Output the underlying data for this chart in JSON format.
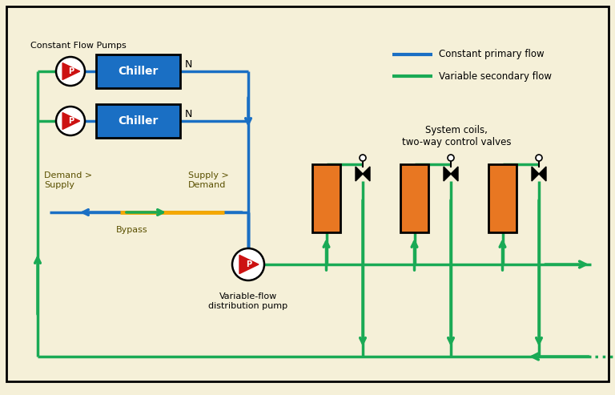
{
  "bg_color": "#f5f0d8",
  "blue_color": "#1a6fc4",
  "green_color": "#1aaa55",
  "orange_rect_color": "#e87722",
  "chiller_bg": "#1a6fc4",
  "bypass_color": "#f5a800",
  "title_text": "Constant Flow Pumps",
  "legend_primary": "Constant primary flow",
  "legend_secondary": "Variable secondary flow",
  "label_demand_supply": "Demand >\nSupply",
  "label_supply_demand": "Supply >\nDemand",
  "label_bypass": "Bypass",
  "label_var_pump": "Variable-flow\ndistribution pump",
  "label_system_coils": "System coils,\ntwo-way control valves",
  "chiller_label": "Chiller",
  "lw": 2.5
}
